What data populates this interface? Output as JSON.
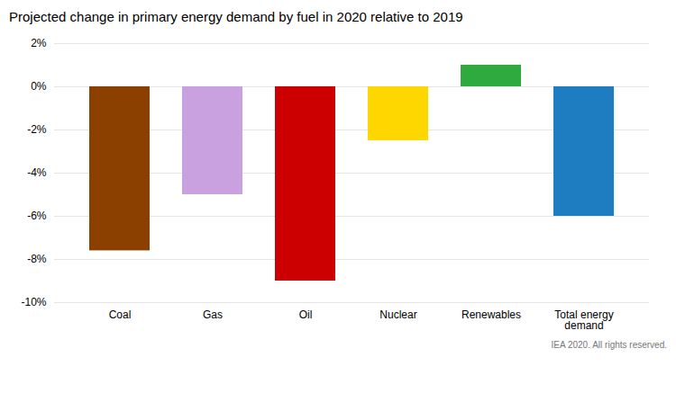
{
  "chart_data": {
    "type": "bar",
    "title": "Projected change in primary energy demand by fuel in 2020 relative to 2019",
    "caption": "IEA 2020. All rights reserved.",
    "categories": [
      "Coal",
      "Gas",
      "Oil",
      "Nuclear",
      "Renewables",
      "Total energy\ndemand"
    ],
    "values": [
      -7.6,
      -5.0,
      -9.0,
      -2.5,
      1.0,
      -6.0
    ],
    "colors": [
      "#8B4000",
      "#C9A0E0",
      "#CC0000",
      "#FFD700",
      "#2EAA3F",
      "#1E7DC0"
    ],
    "ylim": [
      -10,
      2
    ],
    "yticks": [
      {
        "value": -10,
        "label": "-10%"
      },
      {
        "value": -8,
        "label": "-8%"
      },
      {
        "value": -6,
        "label": "-6%"
      },
      {
        "value": -4,
        "label": "-4%"
      },
      {
        "value": -2,
        "label": "-2%"
      },
      {
        "value": 0,
        "label": "0%"
      },
      {
        "value": 2,
        "label": "2%"
      }
    ],
    "grid": true
  }
}
